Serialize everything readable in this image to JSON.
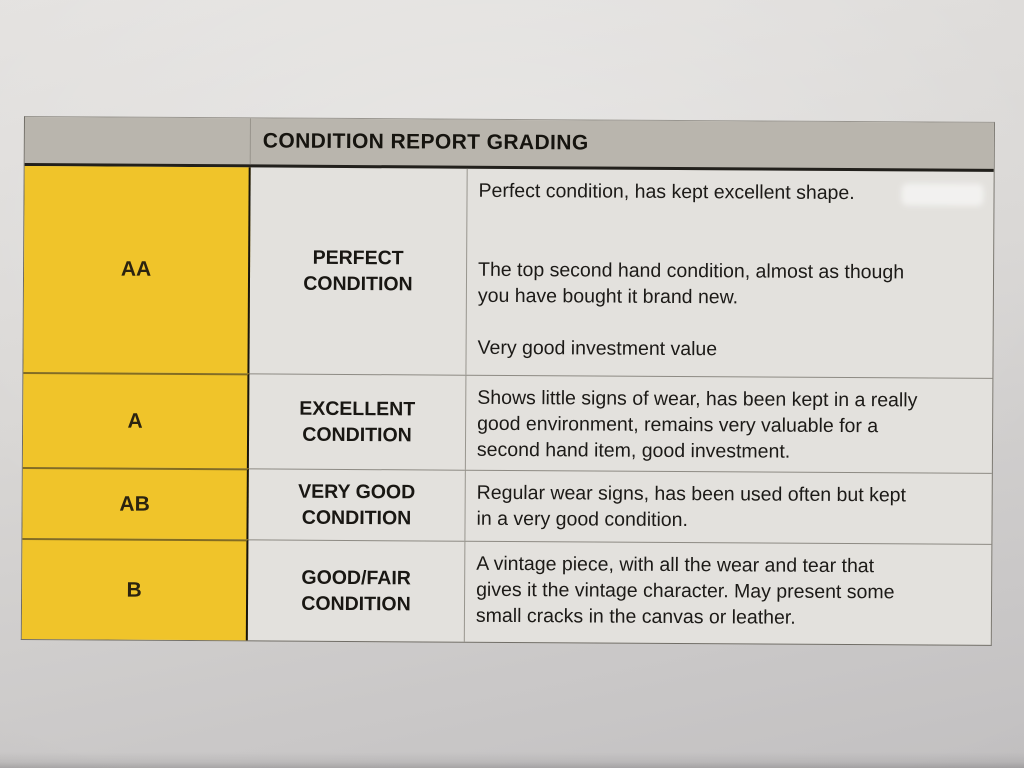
{
  "document": {
    "title": "CONDITION REPORT GRADING",
    "rows": [
      {
        "grade": "AA",
        "condition": "PERFECT\nCONDITION",
        "paragraphs": [
          "Perfect condition, has kept excellent shape.",
          "The top second hand condition, almost as though\nyou have bought it brand new.",
          "Very good investment value"
        ]
      },
      {
        "grade": "A",
        "condition": "EXCELLENT\nCONDITION",
        "paragraphs": [
          "Shows little signs of wear, has been kept in a really\ngood environment, remains very valuable for a\nsecond hand item, good investment."
        ]
      },
      {
        "grade": "AB",
        "condition": "VERY GOOD\nCONDITION",
        "paragraphs": [
          "Regular wear signs, has been used often but kept\nin a very good condition."
        ]
      },
      {
        "grade": "B",
        "condition": "GOOD/FAIR\nCONDITION",
        "paragraphs": [
          "A vintage piece, with all the wear and tear that\ngives it the vintage character. May present some\nsmall cracks in the canvas or leather."
        ]
      }
    ]
  },
  "colors": {
    "grade-yellow": "#f0c42a",
    "header-gray": "#b9b5ad",
    "cell-bg": "#e3e1dd",
    "paper-top": "#e4e2e0",
    "paper-bottom": "#c2c0c1",
    "ink": "#1c1a17"
  }
}
